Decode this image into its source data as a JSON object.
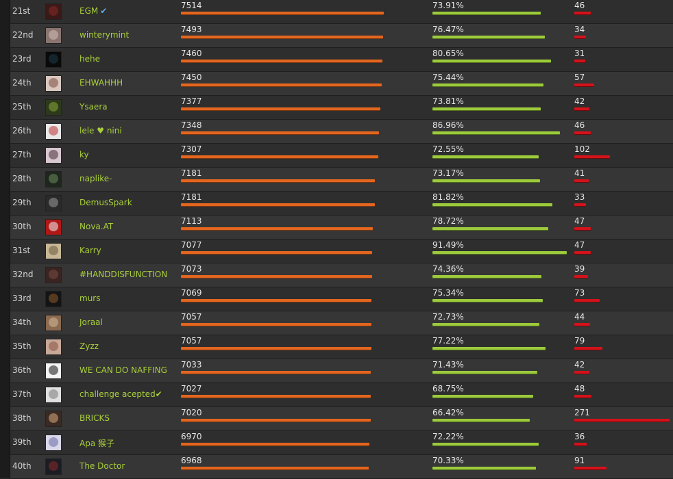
{
  "colors": {
    "score_bar": "#e2661f",
    "pct_bar": "#9cca3c",
    "count_bar": "#d4121a",
    "name_text": "#a9cf3a",
    "verified_icon": "#5fb0e8"
  },
  "leaderboard": {
    "rows": [
      {
        "rank": "21st",
        "name": "EGM",
        "verified": true,
        "avatar": {
          "bg": "#3a1a18",
          "accent": "#8a2a24"
        },
        "score": "7514",
        "pct": "73.91%",
        "count": "46",
        "pct_fill": 0.7391
      },
      {
        "rank": "22nd",
        "name": "winterymint",
        "verified": false,
        "avatar": {
          "bg": "#8a7470",
          "accent": "#d8c0b8"
        },
        "score": "7493",
        "pct": "76.47%",
        "count": "34",
        "pct_fill": 0.7647
      },
      {
        "rank": "23rd",
        "name": "hehe",
        "verified": false,
        "avatar": {
          "bg": "#0a0a0a",
          "accent": "#1e3a4a"
        },
        "score": "7460",
        "pct": "80.65%",
        "count": "31",
        "pct_fill": 0.8065
      },
      {
        "rank": "24th",
        "name": "EHWAHHH",
        "verified": false,
        "avatar": {
          "bg": "#d9c8c0",
          "accent": "#7a4a3a"
        },
        "score": "7450",
        "pct": "75.44%",
        "count": "57",
        "pct_fill": 0.7544
      },
      {
        "rank": "25th",
        "name": "Ysaera",
        "verified": false,
        "avatar": {
          "bg": "#2c3a1a",
          "accent": "#8aa83a"
        },
        "score": "7377",
        "pct": "73.81%",
        "count": "42",
        "pct_fill": 0.7381
      },
      {
        "rank": "26th",
        "name": "lele ♥ nini",
        "verified": false,
        "avatar": {
          "bg": "#e8e8e8",
          "accent": "#c03030"
        },
        "score": "7348",
        "pct": "86.96%",
        "count": "46",
        "pct_fill": 0.8696
      },
      {
        "rank": "27th",
        "name": "ky",
        "verified": false,
        "avatar": {
          "bg": "#d8c8d0",
          "accent": "#4a2a3a"
        },
        "score": "7307",
        "pct": "72.55%",
        "count": "102",
        "pct_fill": 0.7255
      },
      {
        "rank": "28th",
        "name": "naplike-",
        "verified": false,
        "avatar": {
          "bg": "#1e261e",
          "accent": "#6a8a5a"
        },
        "score": "7181",
        "pct": "73.17%",
        "count": "41",
        "pct_fill": 0.7317
      },
      {
        "rank": "29th",
        "name": "DemusSpark",
        "verified": false,
        "avatar": {
          "bg": "#2a2a2a",
          "accent": "#9a9a9a"
        },
        "score": "7181",
        "pct": "81.82%",
        "count": "33",
        "pct_fill": 0.8182
      },
      {
        "rank": "30th",
        "name": "Nova.AT",
        "verified": false,
        "avatar": {
          "bg": "#b01818",
          "accent": "#f0f0f0"
        },
        "score": "7113",
        "pct": "78.72%",
        "count": "47",
        "pct_fill": 0.7872
      },
      {
        "rank": "31st",
        "name": "Karry",
        "verified": false,
        "avatar": {
          "bg": "#c8b898",
          "accent": "#6a5a3a"
        },
        "score": "7077",
        "pct": "91.49%",
        "count": "47",
        "pct_fill": 0.9149
      },
      {
        "rank": "32nd",
        "name": "#HANDDISFUNCTION",
        "verified": false,
        "avatar": {
          "bg": "#3a2422",
          "accent": "#7a4a44"
        },
        "score": "7073",
        "pct": "74.36%",
        "count": "39",
        "pct_fill": 0.7436
      },
      {
        "rank": "33rd",
        "name": "murs",
        "verified": false,
        "avatar": {
          "bg": "#141414",
          "accent": "#8a5a2a"
        },
        "score": "7069",
        "pct": "75.34%",
        "count": "73",
        "pct_fill": 0.7534
      },
      {
        "rank": "34th",
        "name": "Joraal",
        "verified": false,
        "avatar": {
          "bg": "#8a6a50",
          "accent": "#d8b898"
        },
        "score": "7057",
        "pct": "72.73%",
        "count": "44",
        "pct_fill": 0.7273
      },
      {
        "rank": "35th",
        "name": "Zyzz",
        "verified": false,
        "avatar": {
          "bg": "#c8a898",
          "accent": "#8a5040"
        },
        "score": "7057",
        "pct": "77.22%",
        "count": "79",
        "pct_fill": 0.7722
      },
      {
        "rank": "36th",
        "name": "WE CAN DO NAFFING",
        "verified": false,
        "avatar": {
          "bg": "#f4f4f4",
          "accent": "#111111"
        },
        "score": "7033",
        "pct": "71.43%",
        "count": "42",
        "pct_fill": 0.7143
      },
      {
        "rank": "37th",
        "name": "challenge acepted✔",
        "verified": false,
        "avatar": {
          "bg": "#e0e0e0",
          "accent": "#7a7a7a"
        },
        "score": "7027",
        "pct": "68.75%",
        "count": "48",
        "pct_fill": 0.6875
      },
      {
        "rank": "38th",
        "name": "BRICKS",
        "verified": false,
        "avatar": {
          "bg": "#3a2a24",
          "accent": "#d8a878"
        },
        "score": "7020",
        "pct": "66.42%",
        "count": "271",
        "pct_fill": 0.6642
      },
      {
        "rank": "39th",
        "name": "Apa 猴子",
        "verified": false,
        "avatar": {
          "bg": "#d8d8e8",
          "accent": "#6a6aa8"
        },
        "score": "6970",
        "pct": "72.22%",
        "count": "36",
        "pct_fill": 0.7222
      },
      {
        "rank": "40th",
        "name": "The Doctor",
        "verified": false,
        "avatar": {
          "bg": "#1c1c24",
          "accent": "#8a2a2a"
        },
        "score": "6968",
        "pct": "70.33%",
        "count": "91",
        "pct_fill": 0.7033
      }
    ]
  }
}
